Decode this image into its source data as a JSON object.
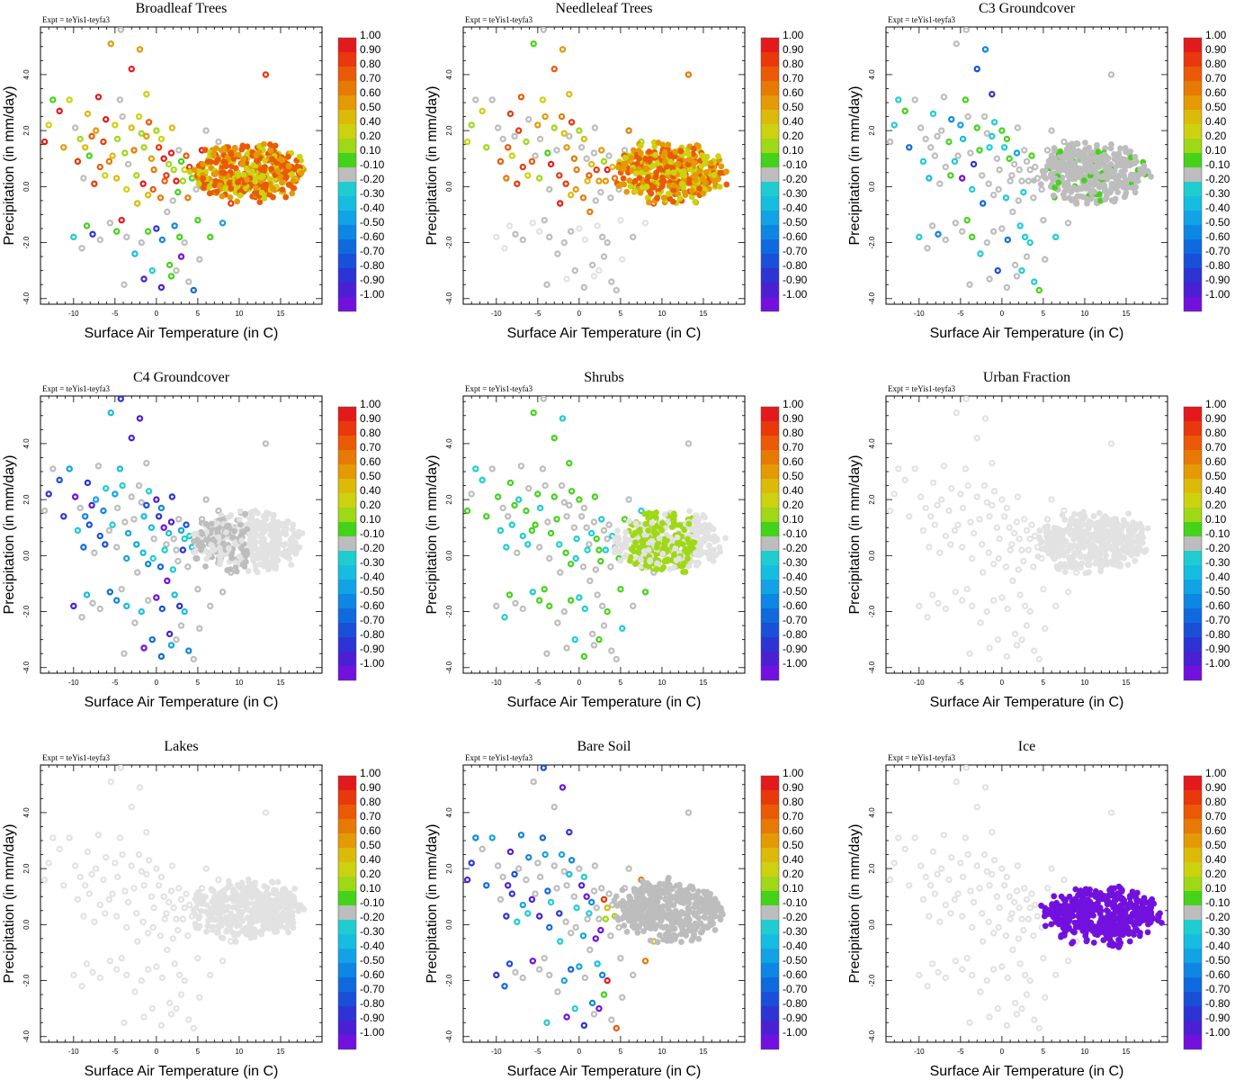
{
  "chart_data": {
    "type": "scatter",
    "layout": "3x3 grid",
    "experiment_label": "Expt = teYis1-teyfa3",
    "xlabel": "Surface Air Temperature (in C)",
    "ylabel": "Precipitation (in mm/day)",
    "xlim": [
      -14,
      20
    ],
    "ylim": [
      -4.2,
      5.7
    ],
    "x_ticks": [
      -10,
      -5,
      0,
      5,
      10,
      15
    ],
    "x_tick_labels": [
      "-10",
      "-5",
      "0",
      "5",
      "10",
      "15"
    ],
    "y_ticks": [
      -4,
      -2,
      0,
      2,
      4
    ],
    "y_tick_labels": [
      "-4.0",
      "-2.0",
      "0.0",
      "2.0",
      "4.0"
    ],
    "colorbar": {
      "labels": [
        "1.00",
        "0.90",
        "0.80",
        "0.70",
        "0.60",
        "0.50",
        "0.40",
        "0.20",
        "0.10",
        "-0.10",
        "-0.20",
        "-0.30",
        "-0.40",
        "-0.50",
        "-0.60",
        "-0.70",
        "-0.80",
        "-0.90",
        "-1.00"
      ],
      "colors": [
        "#e31a1c",
        "#e8380c",
        "#ea5a06",
        "#e67a05",
        "#e39a05",
        "#dcba0a",
        "#ccd210",
        "#9fd817",
        "#44d31a",
        "#bdbdbd",
        "#1fcdd0",
        "#17bde0",
        "#12a3e4",
        "#0e86e3",
        "#0f6ade",
        "#1a4fd8",
        "#2d34d3",
        "#4b20d3",
        "#7211dd"
      ]
    },
    "panels": [
      {
        "title": "Broadleaf Trees",
        "mode": "broadleaf"
      },
      {
        "title": "Needleleaf Trees",
        "mode": "needleleaf"
      },
      {
        "title": "C3 Groundcover",
        "mode": "c3"
      },
      {
        "title": "C4 Groundcover",
        "mode": "c4"
      },
      {
        "title": "Shrubs",
        "mode": "shrubs"
      },
      {
        "title": "Urban Fraction",
        "mode": "urban"
      },
      {
        "title": "Lakes",
        "mode": "lakes"
      },
      {
        "title": "Bare Soil",
        "mode": "baresoil"
      },
      {
        "title": "Ice",
        "mode": "ice"
      }
    ],
    "scatter_points_xy": [
      [
        -12.5,
        3.1
      ],
      [
        -11.7,
        2.7
      ],
      [
        -10.5,
        3.1
      ],
      [
        -9.8,
        2.1
      ],
      [
        -9.2,
        1.7
      ],
      [
        -8.6,
        1.4
      ],
      [
        -8.1,
        1.1
      ],
      [
        -7.8,
        1.8
      ],
      [
        -7.3,
        2.0
      ],
      [
        -6.8,
        0.7
      ],
      [
        -6.4,
        1.6
      ],
      [
        -6.1,
        2.4
      ],
      [
        -5.7,
        0.9
      ],
      [
        -5.3,
        1.1
      ],
      [
        -5.0,
        2.2
      ],
      [
        -4.7,
        1.7
      ],
      [
        -4.4,
        3.1
      ],
      [
        -4.1,
        2.5
      ],
      [
        -3.8,
        1.2
      ],
      [
        -3.4,
        0.8
      ],
      [
        -3.0,
        2.1
      ],
      [
        -2.7,
        1.3
      ],
      [
        -2.4,
        0.4
      ],
      [
        -2.1,
        2.5
      ],
      [
        -1.8,
        1.9
      ],
      [
        -1.5,
        1.4
      ],
      [
        -1.2,
        1.8
      ],
      [
        -0.9,
        2.3
      ],
      [
        -0.6,
        1.0
      ],
      [
        -0.3,
        0.6
      ],
      [
        0.0,
        2.0
      ],
      [
        0.3,
        1.4
      ],
      [
        0.6,
        1.7
      ],
      [
        0.9,
        1.0
      ],
      [
        1.2,
        0.4
      ],
      [
        1.5,
        0.8
      ],
      [
        1.8,
        1.2
      ],
      [
        2.1,
        0.6
      ],
      [
        2.4,
        0.2
      ],
      [
        2.7,
        1.3
      ],
      [
        3.0,
        0.9
      ],
      [
        3.4,
        0.6
      ],
      [
        -5.5,
        5.1
      ],
      [
        -4.3,
        5.6
      ],
      [
        -2.0,
        4.9
      ],
      [
        -3.0,
        4.2
      ],
      [
        -1.2,
        3.3
      ],
      [
        -7.0,
        3.2
      ],
      [
        -8.3,
        2.6
      ],
      [
        -4.8,
        0.3
      ],
      [
        -3.6,
        -0.1
      ],
      [
        -2.3,
        -0.6
      ],
      [
        -1.6,
        0.1
      ],
      [
        -1.0,
        -0.3
      ],
      [
        -0.4,
        -0.1
      ],
      [
        0.5,
        -0.4
      ],
      [
        1.0,
        0.2
      ],
      [
        1.3,
        -0.9
      ],
      [
        2.0,
        -0.5
      ],
      [
        2.6,
        -0.2
      ],
      [
        3.2,
        0.2
      ],
      [
        3.8,
        -0.4
      ],
      [
        4.3,
        0.3
      ],
      [
        4.8,
        -0.1
      ],
      [
        -10.0,
        -1.8
      ],
      [
        -9.0,
        -2.2
      ],
      [
        -8.4,
        -1.4
      ],
      [
        -7.7,
        -1.7
      ],
      [
        -6.8,
        -1.9
      ],
      [
        -5.6,
        -1.3
      ],
      [
        -4.8,
        -1.6
      ],
      [
        -4.2,
        -1.2
      ],
      [
        -3.6,
        -1.8
      ],
      [
        -2.6,
        -2.4
      ],
      [
        -1.8,
        -2.0
      ],
      [
        -1.0,
        -1.6
      ],
      [
        0.0,
        -1.5
      ],
      [
        0.7,
        -1.9
      ],
      [
        1.6,
        -2.8
      ],
      [
        2.2,
        -1.4
      ],
      [
        2.8,
        -1.8
      ],
      [
        3.4,
        -2.0
      ],
      [
        3.9,
        -3.4
      ],
      [
        4.5,
        -3.7
      ],
      [
        5.2,
        -2.6
      ],
      [
        -3.9,
        -3.5
      ],
      [
        -1.5,
        -3.3
      ],
      [
        0.6,
        -3.6
      ],
      [
        1.8,
        -3.2
      ],
      [
        2.4,
        -3.0
      ],
      [
        -13.0,
        2.2
      ],
      [
        -13.5,
        1.6
      ],
      [
        -11.2,
        1.4
      ],
      [
        -9.5,
        0.9
      ],
      [
        -8.8,
        0.3
      ],
      [
        -7.5,
        0.1
      ],
      [
        -6.2,
        0.4
      ],
      [
        3.6,
        1.1
      ],
      [
        4.0,
        0.7
      ],
      [
        1.9,
        2.1
      ],
      [
        13.2,
        4.0
      ],
      [
        6.0,
        2.0
      ],
      [
        7.5,
        1.6
      ],
      [
        5.5,
        1.3
      ],
      [
        8.0,
        -1.3
      ],
      [
        9.0,
        -0.6
      ],
      [
        6.5,
        -1.8
      ],
      [
        5.0,
        -1.2
      ],
      [
        3.0,
        -2.5
      ],
      [
        -0.5,
        -3.0
      ]
    ],
    "cloud_center": [
      11,
      0.5
    ],
    "ice_cloud_center": [
      12,
      0.3
    ]
  }
}
